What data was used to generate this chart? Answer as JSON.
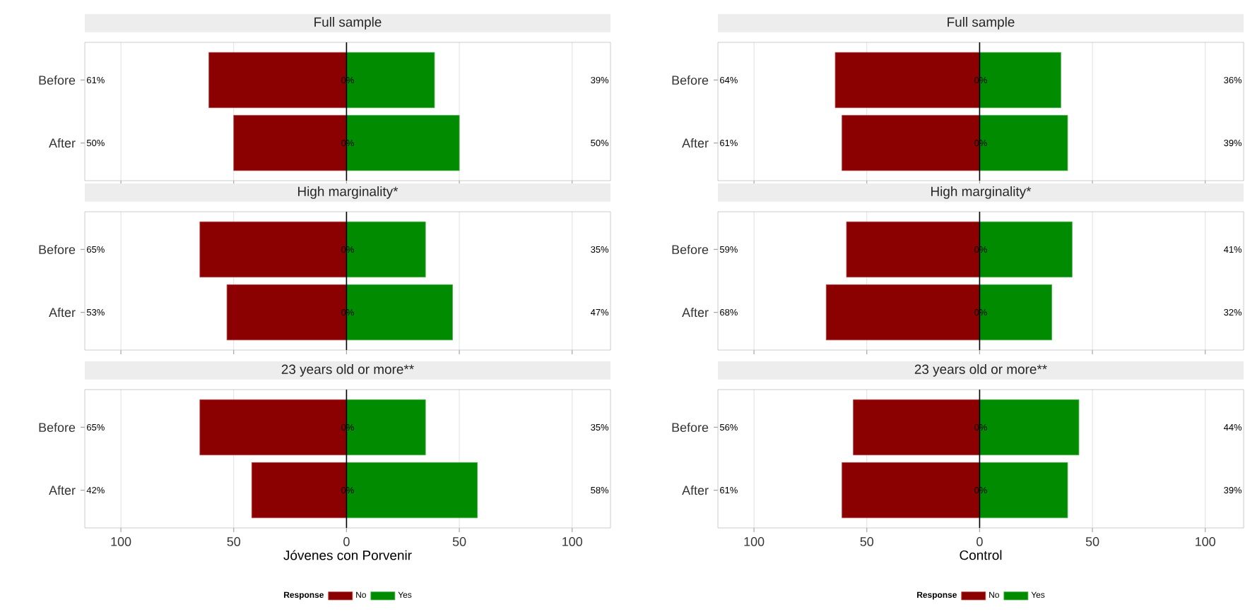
{
  "chart_data": [
    {
      "type": "bar",
      "orientation": "horizontal",
      "stacked": true,
      "title": "Full sample",
      "categories": [
        "Before",
        "After"
      ],
      "series": [
        {
          "color": "#8b0000",
          "values": [
            -61,
            -50
          ]
        },
        {
          "color": "#008b00",
          "values": [
            39,
            50
          ]
        }
      ],
      "xlim": [
        -116,
        117
      ],
      "xticks": [
        {
          "value": -100,
          "label": null
        },
        {
          "value": -50,
          "label": null
        },
        {
          "value": 0,
          "label": null
        },
        {
          "value": 50,
          "label": null
        },
        {
          "value": 100,
          "label": null
        }
      ],
      "grid": "x",
      "tick_labels": "y",
      "ref_lines": [
        {
          "axis": "x",
          "value": 0
        }
      ],
      "annotations": [
        "0%",
        "0%",
        "61%",
        "50%",
        "39%",
        "50%"
      ]
    },
    {
      "type": "bar",
      "orientation": "horizontal",
      "stacked": true,
      "title": "Full sample",
      "categories": [
        "Before",
        "After"
      ],
      "series": [
        {
          "color": "#8b0000",
          "values": [
            -64,
            -61
          ]
        },
        {
          "color": "#008b00",
          "values": [
            36,
            39
          ]
        }
      ],
      "xlim": [
        -116,
        117
      ],
      "xticks": [
        {
          "value": -100,
          "label": null
        },
        {
          "value": -50,
          "label": null
        },
        {
          "value": 0,
          "label": null
        },
        {
          "value": 50,
          "label": null
        },
        {
          "value": 100,
          "label": null
        }
      ],
      "grid": "x",
      "tick_labels": "y",
      "ref_lines": [
        {
          "axis": "x",
          "value": 0
        }
      ],
      "annotations": [
        "0%",
        "0%",
        "64%",
        "61%",
        "36%",
        "39%"
      ]
    },
    {
      "type": "bar",
      "orientation": "horizontal",
      "stacked": true,
      "title": "High marginality*",
      "categories": [
        "Before",
        "After"
      ],
      "series": [
        {
          "color": "#8b0000",
          "values": [
            -65,
            -53
          ]
        },
        {
          "color": "#008b00",
          "values": [
            35,
            47
          ]
        }
      ],
      "xlim": [
        -116,
        117
      ],
      "xticks": [
        {
          "value": -100,
          "label": null
        },
        {
          "value": -50,
          "label": null
        },
        {
          "value": 0,
          "label": null
        },
        {
          "value": 50,
          "label": null
        },
        {
          "value": 100,
          "label": null
        }
      ],
      "grid": "x",
      "tick_labels": "y",
      "ref_lines": [
        {
          "axis": "x",
          "value": 0
        }
      ],
      "annotations": [
        "0%",
        "0%",
        "65%",
        "53%",
        "35%",
        "47%"
      ]
    },
    {
      "type": "bar",
      "orientation": "horizontal",
      "stacked": true,
      "title": "High marginality*",
      "categories": [
        "Before",
        "After"
      ],
      "series": [
        {
          "color": "#8b0000",
          "values": [
            -59,
            -68
          ]
        },
        {
          "color": "#008b00",
          "values": [
            41,
            32
          ]
        }
      ],
      "xlim": [
        -116,
        117
      ],
      "xticks": [
        {
          "value": -100,
          "label": null
        },
        {
          "value": -50,
          "label": null
        },
        {
          "value": 0,
          "label": null
        },
        {
          "value": 50,
          "label": null
        },
        {
          "value": 100,
          "label": null
        }
      ],
      "grid": "x",
      "tick_labels": "y",
      "ref_lines": [
        {
          "axis": "x",
          "value": 0
        }
      ],
      "annotations": [
        "0%",
        "0%",
        "59%",
        "68%",
        "41%",
        "32%"
      ]
    },
    {
      "type": "bar",
      "orientation": "horizontal",
      "stacked": true,
      "title": "23 years old or more**",
      "categories": [
        "Before",
        "After"
      ],
      "series": [
        {
          "name": "No",
          "color": "#8b0000",
          "values": [
            -65,
            -42
          ]
        },
        {
          "name": "Yes",
          "color": "#008b00",
          "values": [
            35,
            58
          ]
        }
      ],
      "xlim": [
        -116,
        117
      ],
      "xticks": [
        {
          "value": -100,
          "label": "100"
        },
        {
          "value": -50,
          "label": "50"
        },
        0,
        50,
        100
      ],
      "grid": "x",
      "xlabel": "Jóvenes con Porvenir",
      "legend": "bottom",
      "legend_title": "Response",
      "ref_lines": [
        {
          "axis": "x",
          "value": 0
        }
      ],
      "annotations": [
        "0%",
        "0%",
        "65%",
        "42%",
        "35%",
        "58%"
      ]
    },
    {
      "type": "bar",
      "orientation": "horizontal",
      "stacked": true,
      "title": "23 years old or more**",
      "categories": [
        "Before",
        "After"
      ],
      "series": [
        {
          "name": "No",
          "color": "#8b0000",
          "values": [
            -56,
            -61
          ]
        },
        {
          "name": "Yes",
          "color": "#008b00",
          "values": [
            44,
            39
          ]
        }
      ],
      "xlim": [
        -116,
        117
      ],
      "xticks": [
        {
          "value": -100,
          "label": "100"
        },
        {
          "value": -50,
          "label": "50"
        },
        0,
        50,
        100
      ],
      "grid": "x",
      "xlabel": "Control",
      "legend": "bottom",
      "legend_title": "Response",
      "ref_lines": [
        {
          "axis": "x",
          "value": 0
        }
      ],
      "annotations": [
        "0%",
        "0%",
        "56%",
        "61%",
        "44%",
        "39%"
      ]
    }
  ]
}
